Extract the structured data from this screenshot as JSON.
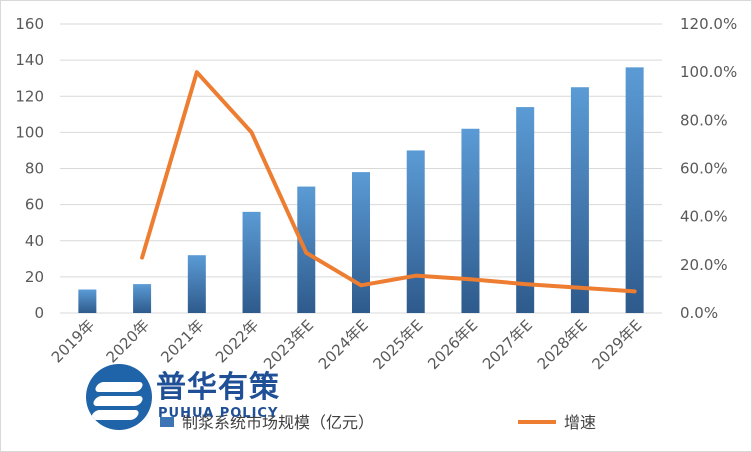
{
  "chart_data": {
    "type": "bar+line",
    "categories": [
      "2019年",
      "2020年",
      "2021年",
      "2022年",
      "2023年E",
      "2024年E",
      "2025年E",
      "2026年E",
      "2027年E",
      "2028年E",
      "2029年E"
    ],
    "series": [
      {
        "name": "蓝色条：制浆系统市场规模（亿元）",
        "type": "bar",
        "axis": "left",
        "values": [
          13,
          16,
          32,
          56,
          70,
          78,
          90,
          102,
          114,
          125,
          136
        ]
      },
      {
        "name": "增速",
        "type": "line",
        "axis": "right",
        "values": [
          null,
          23,
          100,
          75,
          25,
          11.5,
          15.5,
          14,
          12,
          10.5,
          9
        ]
      }
    ],
    "left_axis": {
      "min": 0,
      "max": 160,
      "step": 20,
      "ticks": [
        "0",
        "20",
        "40",
        "60",
        "80",
        "100",
        "120",
        "140",
        "160"
      ]
    },
    "right_axis": {
      "min": 0,
      "max": 120,
      "step": 20,
      "ticks": [
        "0.0%",
        "20.0%",
        "40.0%",
        "60.0%",
        "80.0%",
        "100.0%",
        "120.0%"
      ]
    },
    "grid": true,
    "legend_position": "bottom",
    "legend": {
      "bar_label": "制浆系统市场规模（亿元）",
      "line_label": "增速"
    },
    "colors": {
      "bar_top": "#5b9bd5",
      "bar_bottom": "#2e5a8c",
      "line": "#ed7d31",
      "grid": "#d9d9d9"
    }
  },
  "watermark": {
    "chinese": "普华有策",
    "english": "PUHUA POLICY"
  }
}
